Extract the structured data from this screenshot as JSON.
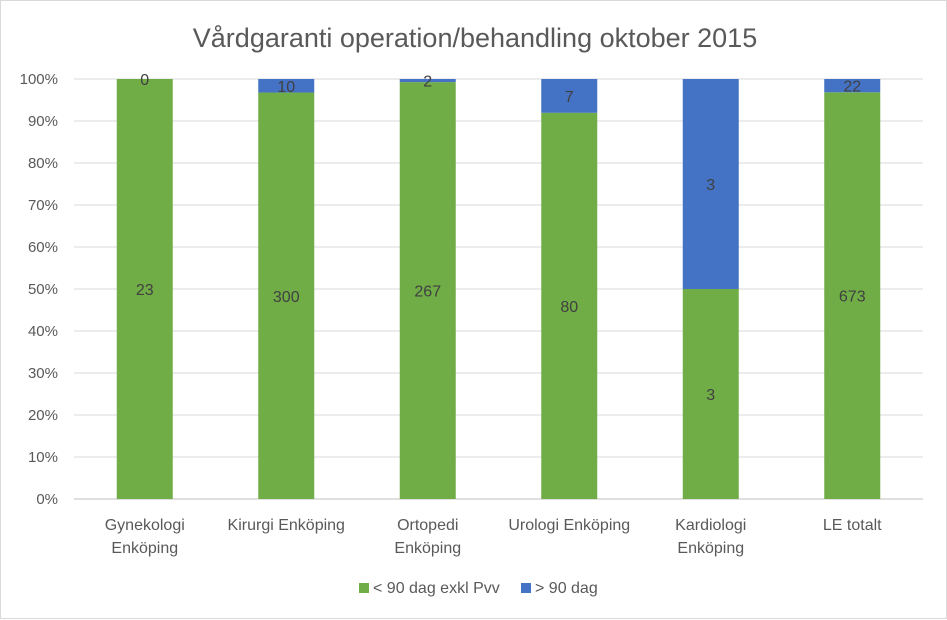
{
  "chart_data": {
    "type": "bar",
    "stacked": "percent",
    "title": "Vårdgaranti operation/behandling oktober 2015",
    "xlabel": "",
    "ylabel": "",
    "ylim": [
      0,
      100
    ],
    "y_ticks": [
      "0%",
      "10%",
      "20%",
      "30%",
      "40%",
      "50%",
      "60%",
      "70%",
      "80%",
      "90%",
      "100%"
    ],
    "grid": true,
    "legend_position": "bottom",
    "categories": [
      [
        "Gynekologi",
        "Enköping"
      ],
      [
        "Kirurgi Enköping"
      ],
      [
        "Ortopedi",
        "Enköping"
      ],
      [
        "Urologi Enköping"
      ],
      [
        "Kardiologi",
        "Enköping"
      ],
      [
        "LE totalt"
      ]
    ],
    "series": [
      {
        "name": "< 90 dag exkl Pvv",
        "color": "#70ad47",
        "values": [
          23,
          300,
          267,
          80,
          3,
          673
        ]
      },
      {
        "name": "> 90 dag",
        "color": "#4472c4",
        "values": [
          0,
          10,
          2,
          7,
          3,
          22
        ]
      }
    ]
  }
}
